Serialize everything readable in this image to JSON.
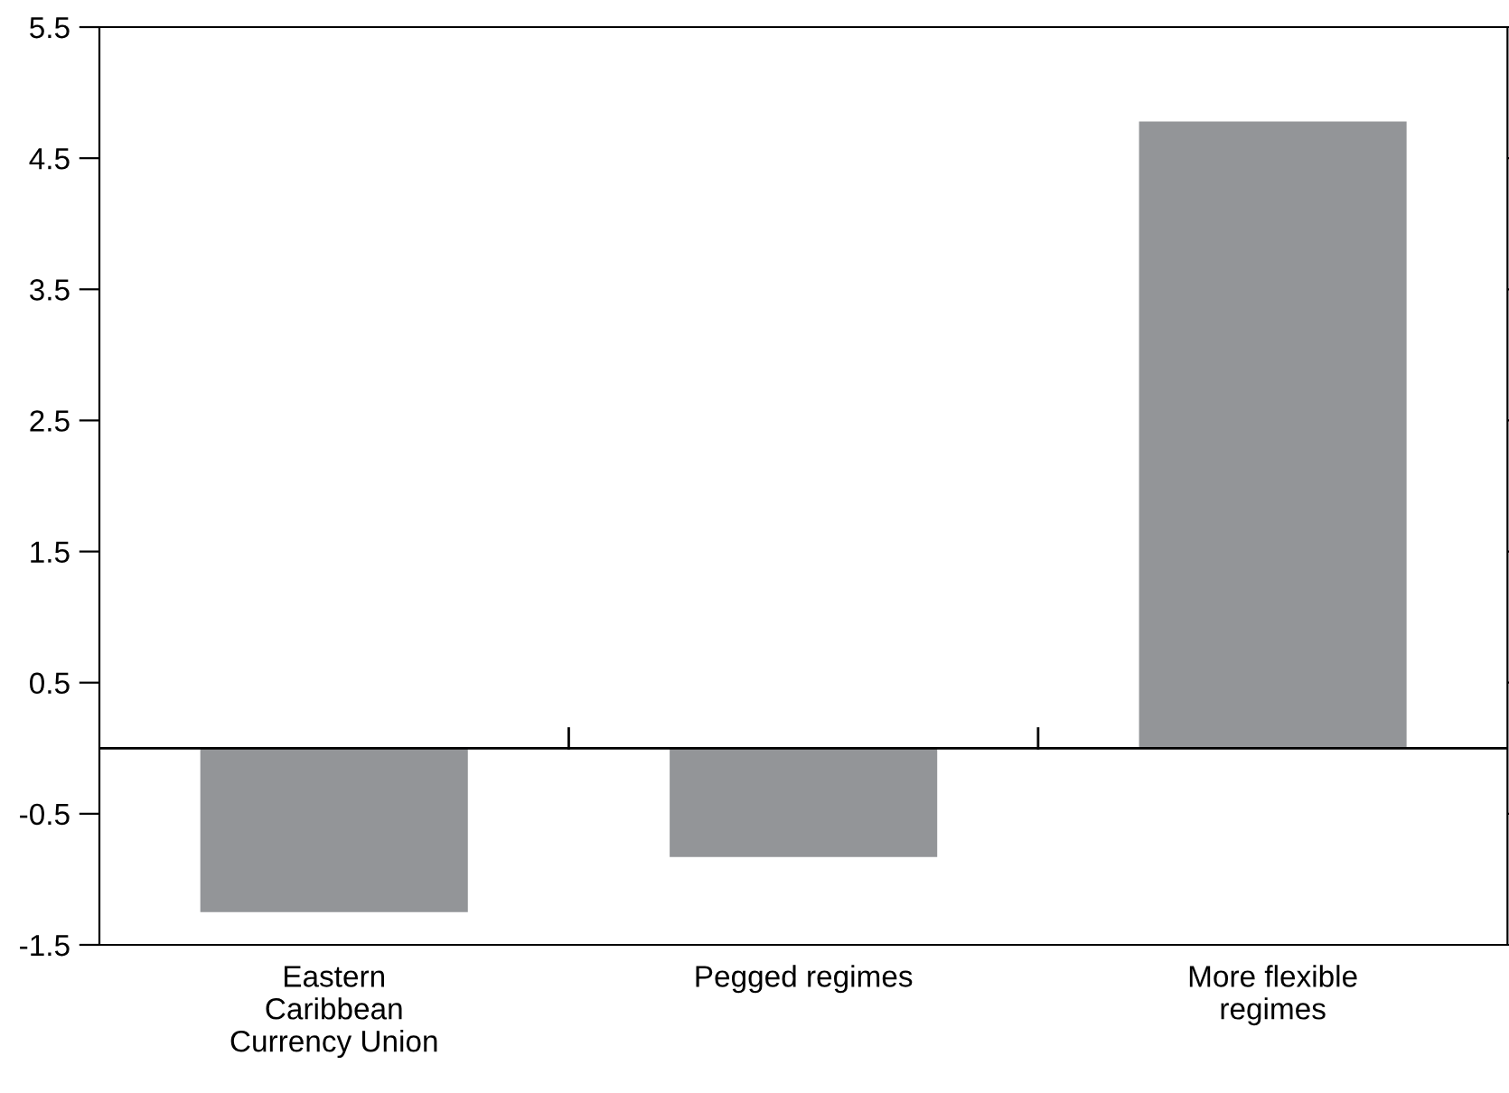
{
  "chart_data": {
    "type": "bar",
    "categories": [
      "Eastern\nCaribbean\nCurrency Union",
      "Pegged regimes",
      "More flexible\nregimes"
    ],
    "values": [
      -1.25,
      -0.83,
      4.78
    ],
    "color": "#939598",
    "ylim": [
      -1.5,
      5.5
    ],
    "yticks": [
      {
        "value": -1.5,
        "label": "-1.5"
      },
      {
        "value": -0.5,
        "label": "-0.5"
      },
      0.5,
      1.5,
      2.5,
      3.5,
      4.5,
      5.5
    ],
    "ref_lines": [
      {
        "axis": "y",
        "value": 0,
        "color": "#000000"
      }
    ],
    "grid": false
  }
}
